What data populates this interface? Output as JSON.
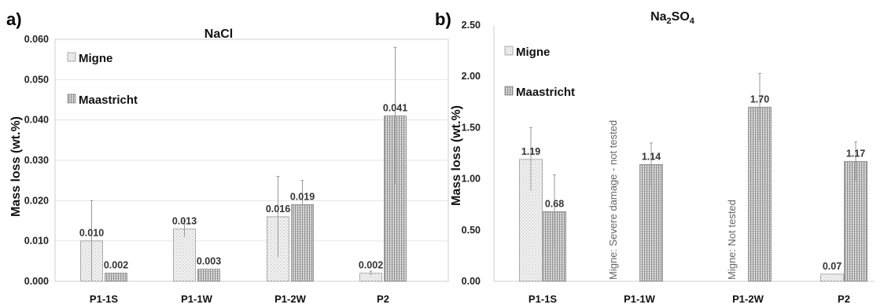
{
  "figure": {
    "panels": [
      {
        "letter": "a)",
        "title": "NaCl",
        "ylabel": "Mass loss (wt.%)",
        "ytick_labels": [
          "0.000",
          "0.010",
          "0.020",
          "0.030",
          "0.040",
          "0.050",
          "0.060"
        ]
      },
      {
        "letter": "b)",
        "title_main": "Na",
        "title_sub": "2",
        "title_rest": "SO",
        "title_sub2": "4",
        "ylabel": "Mass loss (wt.%)",
        "ytick_labels": [
          "0.00",
          "0.50",
          "1.00",
          "1.50",
          "2.00",
          "2.50"
        ],
        "notes": [
          {
            "category": "P1-1W",
            "text": "Migne: Severe damage - not tested"
          },
          {
            "category": "P1-2W",
            "text": "Migne: Not tested"
          }
        ]
      }
    ],
    "legend": [
      "Migne",
      "Maastricht"
    ]
  },
  "chart_data": [
    {
      "type": "bar",
      "title": "NaCl",
      "ylabel": "Mass loss (wt.%)",
      "xlabel": "",
      "ylim": [
        0,
        0.06
      ],
      "grid": true,
      "legend_position": "top-left",
      "categories": [
        "P1-1S",
        "P1-1W",
        "P1-2W",
        "P2"
      ],
      "series": [
        {
          "name": "Migne",
          "values": [
            0.01,
            0.013,
            0.016,
            0.002
          ],
          "errors": [
            0.01,
            0.002,
            0.01,
            0.0005
          ],
          "labels": [
            "0.010",
            "0.013",
            "0.016",
            "0.002"
          ]
        },
        {
          "name": "Maastricht",
          "values": [
            0.002,
            0.003,
            0.019,
            0.041
          ],
          "errors": [
            0.0,
            0.0,
            0.006,
            0.017
          ],
          "labels": [
            "0.002",
            "0.003",
            "0.019",
            "0.041"
          ]
        }
      ]
    },
    {
      "type": "bar",
      "title": "Na2SO4",
      "ylabel": "Mass loss (wt.%)",
      "xlabel": "",
      "ylim": [
        0,
        2.5
      ],
      "grid": false,
      "legend_position": "top-left",
      "categories": [
        "P1-1S",
        "P1-1W",
        "P1-2W",
        "P2"
      ],
      "series": [
        {
          "name": "Migne",
          "values": [
            1.19,
            null,
            null,
            0.07
          ],
          "errors": [
            0.31,
            null,
            null,
            0.0
          ],
          "labels": [
            "1.19",
            "",
            "",
            "0.07"
          ]
        },
        {
          "name": "Maastricht",
          "values": [
            0.68,
            1.14,
            1.7,
            1.17
          ],
          "errors": [
            0.36,
            0.21,
            0.33,
            0.19
          ],
          "labels": [
            "0.68",
            "1.14",
            "1.70",
            "1.17"
          ]
        }
      ]
    }
  ]
}
